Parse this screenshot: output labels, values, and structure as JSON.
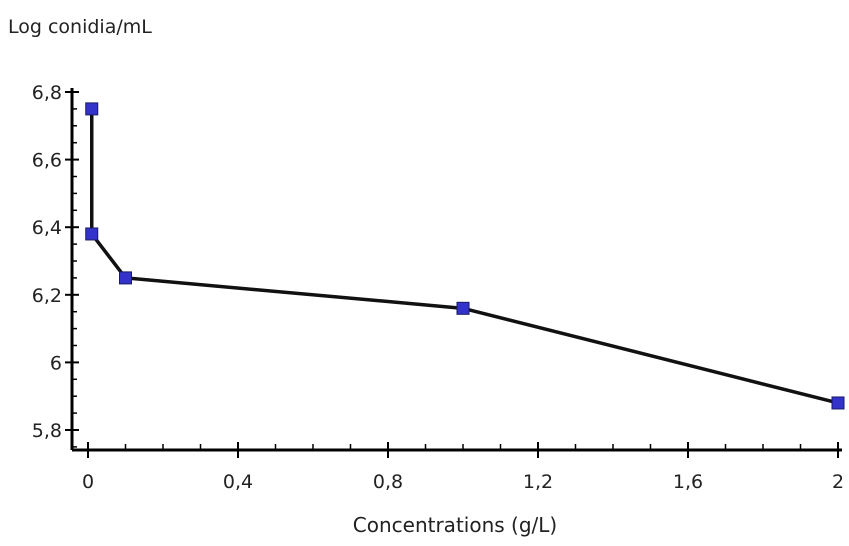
{
  "chart_data": {
    "type": "line",
    "title": "",
    "xlabel": "Concentrations (g/L)",
    "ylabel": "Log conidia/mL",
    "xlim": [
      0,
      2
    ],
    "ylim": [
      5.8,
      6.8
    ],
    "x_ticks": [
      0,
      0.4,
      0.8,
      1.2,
      1.6,
      2
    ],
    "x_tick_labels": [
      "0",
      "0,4",
      "0,8",
      "1,2",
      "1,6",
      "2"
    ],
    "y_ticks": [
      5.8,
      6.0,
      6.2,
      6.4,
      6.6,
      6.8
    ],
    "y_tick_labels": [
      "5,8",
      "6",
      "6,2",
      "6,4",
      "6,6",
      "6,8"
    ],
    "grid": false,
    "legend": "none",
    "series": [
      {
        "color": "#111111",
        "marker_color": "#3333cc",
        "points": [
          {
            "x": 0.01,
            "y": 6.75
          },
          {
            "x": 0.01,
            "y": 6.38
          },
          {
            "x": 0.1,
            "y": 6.25
          },
          {
            "x": 1.0,
            "y": 6.16
          },
          {
            "x": 2.0,
            "y": 5.88
          }
        ]
      }
    ]
  }
}
